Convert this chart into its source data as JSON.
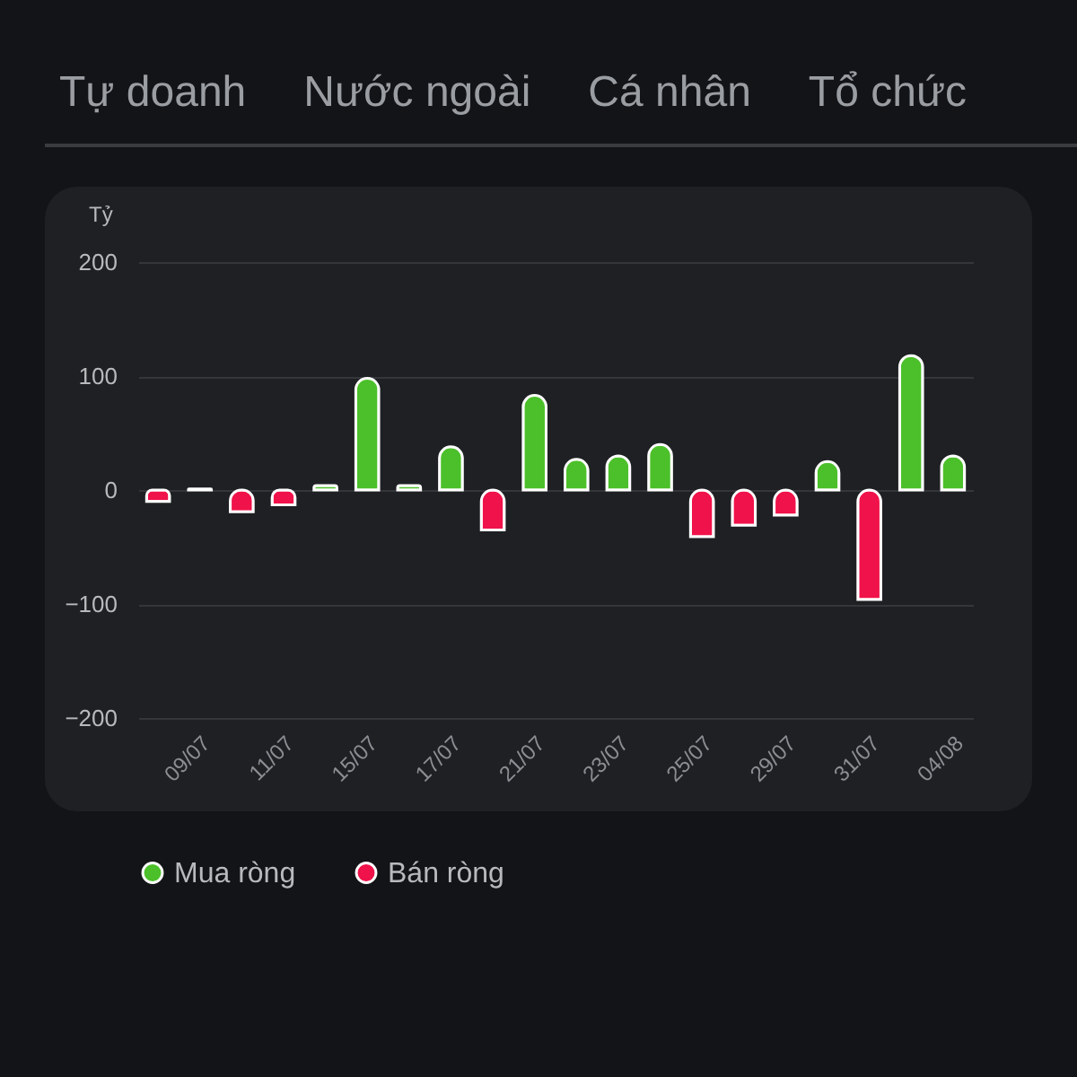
{
  "chart_data": {
    "type": "bar",
    "ylabel": "Tỷ",
    "annotations": [
      "Tự doanh",
      "Nước ngoài",
      "Cá nhân",
      "Tổ chức"
    ],
    "categories": [
      null,
      "09/07",
      null,
      "11/07",
      null,
      "15/07",
      null,
      "17/07",
      null,
      "21/07",
      null,
      "23/07",
      null,
      "25/07",
      null,
      "29/07",
      null,
      "31/07",
      null,
      "04/08"
    ],
    "series": [
      {
        "name": "Mua ròng",
        "color": "#4cc02a",
        "values": [
          null,
          1,
          null,
          null,
          4,
          98,
          4,
          38,
          null,
          83,
          27,
          30,
          40,
          null,
          null,
          null,
          25,
          null,
          118,
          30
        ]
      },
      {
        "name": "Bán ròng",
        "color": "#f0124a",
        "values": [
          -10,
          null,
          -19,
          -13,
          null,
          null,
          null,
          null,
          -35,
          null,
          null,
          null,
          null,
          -41,
          -31,
          -22,
          null,
          -96,
          null,
          null
        ]
      }
    ],
    "ylim": [
      -200,
      200
    ],
    "yticks": [
      -200,
      -100,
      0,
      100,
      200
    ],
    "grid": "y",
    "legend": "bottom"
  }
}
